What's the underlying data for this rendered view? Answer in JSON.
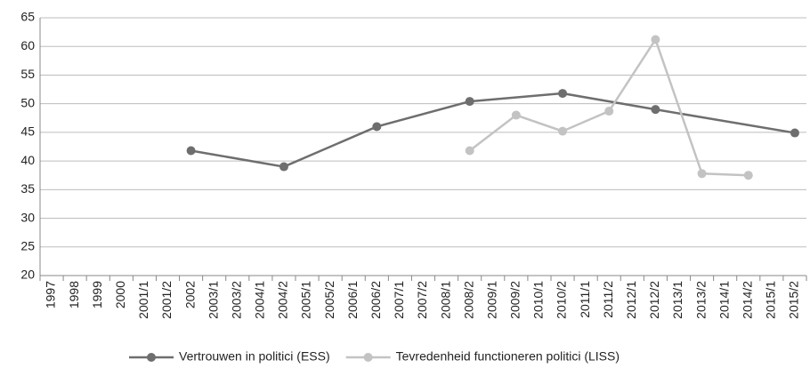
{
  "chart_data": {
    "type": "line",
    "categories": [
      "1997",
      "1998",
      "1999",
      "2000",
      "2001/1",
      "2001/2",
      "2002",
      "2003/1",
      "2003/2",
      "2004/1",
      "2004/2",
      "2005/1",
      "2005/2",
      "2006/1",
      "2006/2",
      "2007/1",
      "2007/2",
      "2008/1",
      "2008/2",
      "2009/1",
      "2009/2",
      "2010/1",
      "2010/2",
      "2011/1",
      "2011/2",
      "2012/1",
      "2012/2",
      "2013/1",
      "2013/2",
      "2014/1",
      "2014/2",
      "2015/1",
      "2015/2"
    ],
    "series": [
      {
        "name": "Vertrouwen in politici (ESS)",
        "color": "#6e6e6e",
        "x": [
          "2002",
          "2004/2",
          "2006/2",
          "2008/2",
          "2010/2",
          "2012/2",
          "2015/2"
        ],
        "values": [
          41.8,
          39.0,
          46.0,
          50.4,
          51.8,
          49.0,
          44.9
        ]
      },
      {
        "name": "Tevredenheid functioneren politici (LISS)",
        "color": "#c3c3c3",
        "x": [
          "2008/2",
          "2009/2",
          "2010/2",
          "2011/2",
          "2012/2",
          "2013/2",
          "2014/2"
        ],
        "values": [
          41.8,
          48.0,
          45.2,
          48.7,
          61.2,
          37.8,
          37.5
        ]
      }
    ],
    "ylim": [
      20,
      65
    ],
    "yticks": [
      20,
      25,
      30,
      35,
      40,
      45,
      50,
      55,
      60,
      65
    ],
    "grid": true,
    "legend": "bottom"
  }
}
